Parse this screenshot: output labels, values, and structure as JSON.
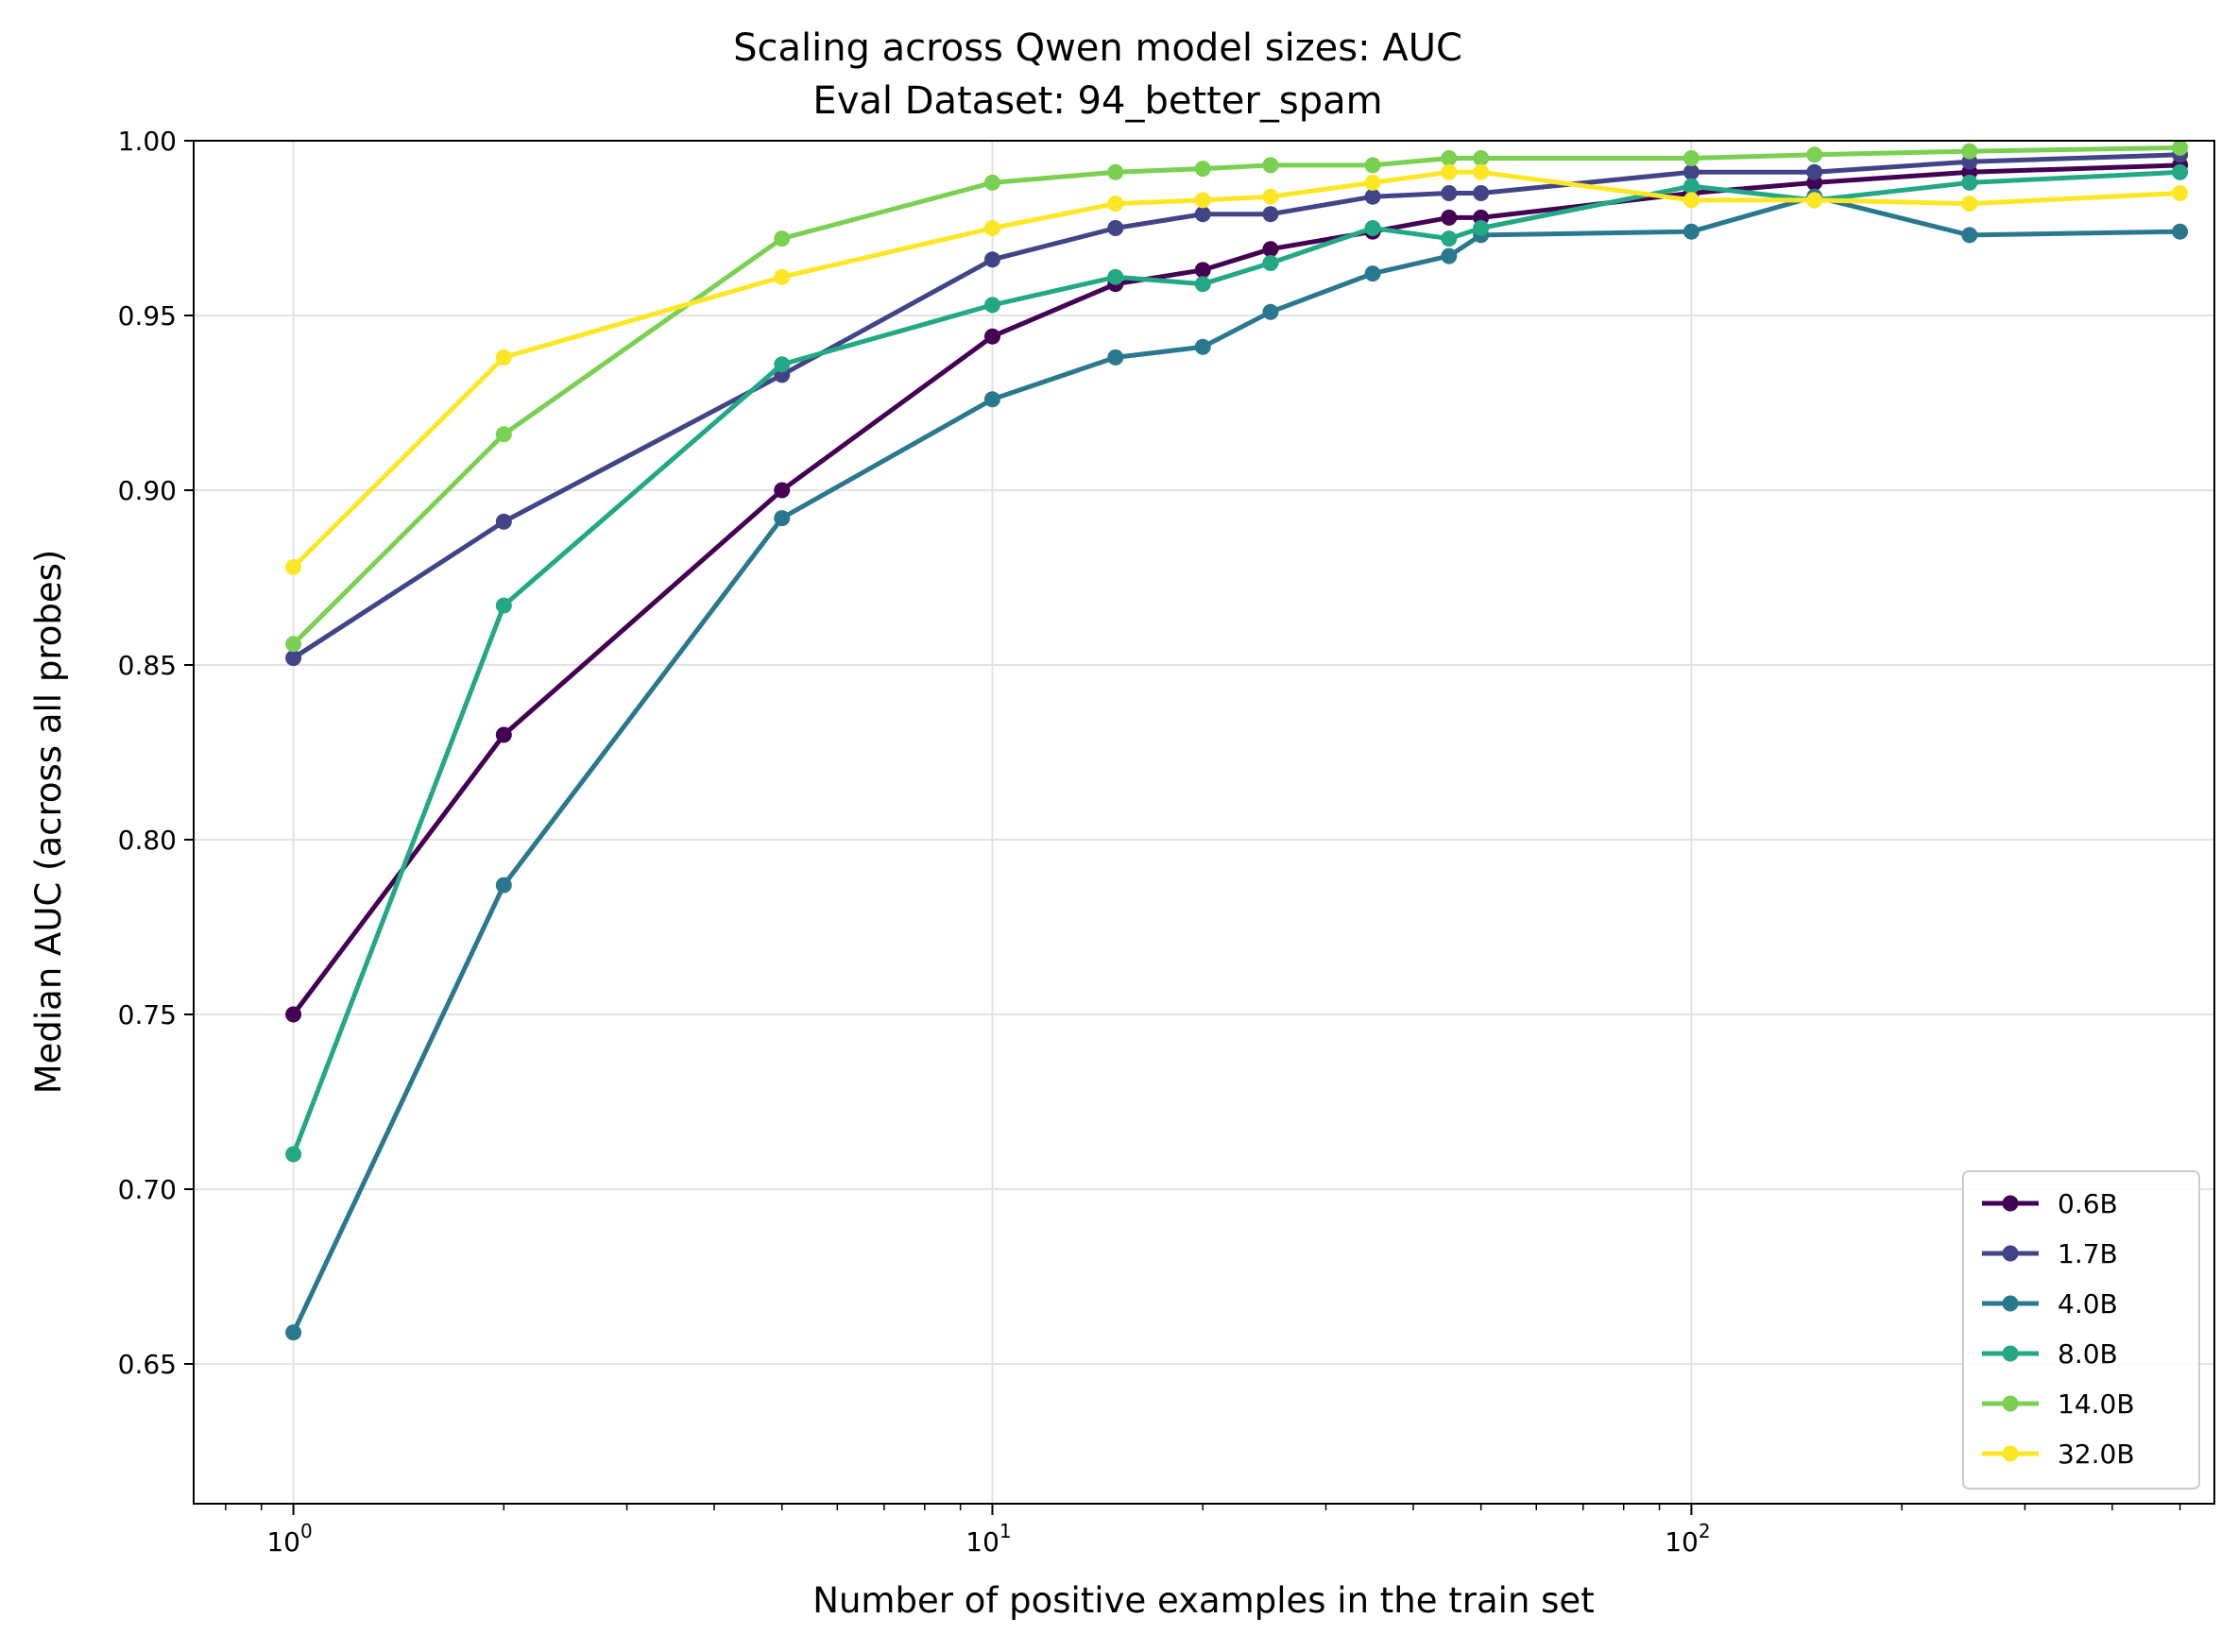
{
  "chart_data": {
    "type": "line",
    "title": "Scaling across Qwen model sizes: AUC",
    "subtitle": "Eval Dataset: 94_better_spam",
    "xlabel": "Number of positive examples in the train set",
    "ylabel": "Median AUC (across all probes)",
    "x_scale": "log",
    "xlim": [
      0.72,
      560
    ],
    "ylim": [
      0.61,
      1.0
    ],
    "x_ticks": [
      {
        "value": 1,
        "base": "10",
        "exp": "0"
      },
      {
        "value": 10,
        "base": "10",
        "exp": "1"
      },
      {
        "value": 100,
        "base": "10",
        "exp": "2"
      }
    ],
    "y_ticks": [
      {
        "value": 0.65,
        "label": "0.65"
      },
      {
        "value": 0.7,
        "label": "0.70"
      },
      {
        "value": 0.75,
        "label": "0.75"
      },
      {
        "value": 0.8,
        "label": "0.80"
      },
      {
        "value": 0.85,
        "label": "0.85"
      },
      {
        "value": 0.9,
        "label": "0.90"
      },
      {
        "value": 0.95,
        "label": "0.95"
      },
      {
        "value": 1.0,
        "label": "1.00"
      }
    ],
    "grid": true,
    "legend_position": "lower-right",
    "series": [
      {
        "name": "0.6B",
        "color": "#440154",
        "x": [
          1,
          2,
          5,
          10,
          15,
          20,
          25,
          35,
          45,
          50,
          100,
          150,
          250,
          500
        ],
        "y": [
          0.75,
          0.83,
          0.9,
          0.944,
          0.959,
          0.963,
          0.969,
          0.974,
          0.978,
          0.978,
          0.985,
          0.988,
          0.991,
          0.993
        ]
      },
      {
        "name": "1.7B",
        "color": "#414487",
        "x": [
          1,
          2,
          5,
          10,
          15,
          20,
          25,
          35,
          45,
          50,
          100,
          150,
          250,
          500
        ],
        "y": [
          0.852,
          0.891,
          0.933,
          0.966,
          0.975,
          0.979,
          0.979,
          0.984,
          0.985,
          0.985,
          0.991,
          0.991,
          0.994,
          0.996
        ]
      },
      {
        "name": "4.0B",
        "color": "#2a788e",
        "x": [
          1,
          2,
          5,
          10,
          15,
          20,
          25,
          35,
          45,
          50,
          100,
          150,
          250,
          500
        ],
        "y": [
          0.659,
          0.787,
          0.892,
          0.926,
          0.938,
          0.941,
          0.951,
          0.962,
          0.967,
          0.973,
          0.974,
          0.984,
          0.973,
          0.974
        ]
      },
      {
        "name": "8.0B",
        "color": "#22a884",
        "x": [
          1,
          2,
          5,
          10,
          15,
          20,
          25,
          35,
          45,
          50,
          100,
          150,
          250,
          500
        ],
        "y": [
          0.71,
          0.867,
          0.936,
          0.953,
          0.961,
          0.959,
          0.965,
          0.975,
          0.972,
          0.975,
          0.987,
          0.983,
          0.988,
          0.991
        ]
      },
      {
        "name": "14.0B",
        "color": "#7ad151",
        "x": [
          1,
          2,
          5,
          10,
          15,
          20,
          25,
          35,
          45,
          50,
          100,
          150,
          250,
          500
        ],
        "y": [
          0.856,
          0.916,
          0.972,
          0.988,
          0.991,
          0.992,
          0.993,
          0.993,
          0.995,
          0.995,
          0.995,
          0.996,
          0.997,
          0.998
        ]
      },
      {
        "name": "32.0B",
        "color": "#fde725",
        "x": [
          1,
          2,
          5,
          10,
          15,
          20,
          25,
          35,
          45,
          50,
          100,
          150,
          250,
          500
        ],
        "y": [
          0.878,
          0.938,
          0.961,
          0.975,
          0.982,
          0.983,
          0.984,
          0.988,
          0.991,
          0.991,
          0.983,
          0.983,
          0.982,
          0.985
        ]
      }
    ]
  }
}
